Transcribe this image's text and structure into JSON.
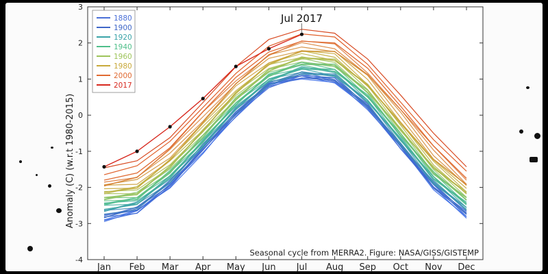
{
  "chart_data": {
    "type": "line",
    "ylabel": "Anomaly (C) (w.r.t 1980-2015)",
    "caption": "Seasonal cycle from MERRA2. Figure: NASA/GISS/GISTEMP",
    "annotation": "Jul 2017",
    "ylim": [
      -4,
      3
    ],
    "yticks": [
      "-4",
      "-3",
      "-2",
      "-1",
      "0",
      "1",
      "2",
      "3"
    ],
    "categories": [
      "Jan",
      "Feb",
      "Mar",
      "Apr",
      "May",
      "Jun",
      "Jul",
      "Aug",
      "Sep",
      "Oct",
      "Nov",
      "Dec"
    ],
    "legend": [
      {
        "label": "1880",
        "color": "#4a6fd8"
      },
      {
        "label": "1900",
        "color": "#3f67c8"
      },
      {
        "label": "1920",
        "color": "#3aa3a8"
      },
      {
        "label": "1940",
        "color": "#4fbf8a"
      },
      {
        "label": "1960",
        "color": "#9ec45a"
      },
      {
        "label": "1980",
        "color": "#c8a93a"
      },
      {
        "label": "2000",
        "color": "#e06a32"
      },
      {
        "label": "2017",
        "color": "#d7281e"
      }
    ],
    "series": [
      {
        "name": "1880",
        "color": "#3a6be8",
        "values": [
          -2.9,
          -2.7,
          -2.0,
          -1.0,
          0.0,
          0.8,
          1.05,
          0.95,
          0.2,
          -0.9,
          -2.0,
          -2.8
        ]
      },
      {
        "name": "1900",
        "color": "#3f67c8",
        "values": [
          -2.8,
          -2.6,
          -1.9,
          -0.9,
          0.05,
          0.85,
          1.1,
          1.0,
          0.25,
          -0.85,
          -1.95,
          -2.7
        ]
      },
      {
        "name": "1920",
        "color": "#3aa3a8",
        "values": [
          -2.6,
          -2.45,
          -1.75,
          -0.8,
          0.2,
          0.95,
          1.25,
          1.15,
          0.4,
          -0.7,
          -1.8,
          -2.55
        ]
      },
      {
        "name": "1940",
        "color": "#4fbf8a",
        "values": [
          -2.4,
          -2.3,
          -1.6,
          -0.65,
          0.35,
          1.1,
          1.4,
          1.3,
          0.55,
          -0.55,
          -1.65,
          -2.4
        ]
      },
      {
        "name": "1960",
        "color": "#9ec45a",
        "values": [
          -2.25,
          -2.15,
          -1.45,
          -0.5,
          0.5,
          1.25,
          1.55,
          1.45,
          0.7,
          -0.4,
          -1.5,
          -2.25
        ]
      },
      {
        "name": "1980",
        "color": "#c8a93a",
        "values": [
          -2.05,
          -1.95,
          -1.25,
          -0.3,
          0.7,
          1.45,
          1.75,
          1.65,
          0.9,
          -0.2,
          -1.3,
          -2.05
        ]
      },
      {
        "name": "2000",
        "color": "#e06a32",
        "values": [
          -1.8,
          -1.6,
          -0.9,
          0.1,
          1.05,
          1.75,
          2.05,
          2.0,
          1.3,
          0.25,
          -0.85,
          -1.75
        ]
      },
      {
        "name": "2017",
        "color": "#d7281e",
        "values": [
          -1.43,
          -1.0,
          -0.32,
          0.46,
          1.35,
          1.84,
          2.24,
          null,
          null,
          null,
          null,
          null
        ]
      }
    ]
  }
}
